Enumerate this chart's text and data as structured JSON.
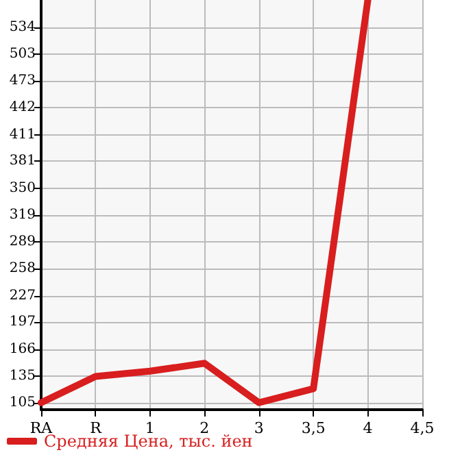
{
  "chart_data": {
    "type": "line",
    "categories": [
      "RA",
      "R",
      "1",
      "2",
      "3",
      "3,5",
      "4",
      "4,5"
    ],
    "series": [
      {
        "name": "Средняя Цена, тыс. йен",
        "color": "#d81e1e",
        "values": [
          105,
          135,
          141,
          150,
          105,
          121,
          565,
          null
        ]
      }
    ],
    "ylim": [
      97,
      565
    ],
    "yticks": [
      105,
      135,
      166,
      197,
      227,
      258,
      289,
      319,
      350,
      381,
      411,
      442,
      473,
      503,
      534
    ],
    "grid": true,
    "legend": "bottom",
    "marker": "none",
    "line_style": "solid"
  }
}
